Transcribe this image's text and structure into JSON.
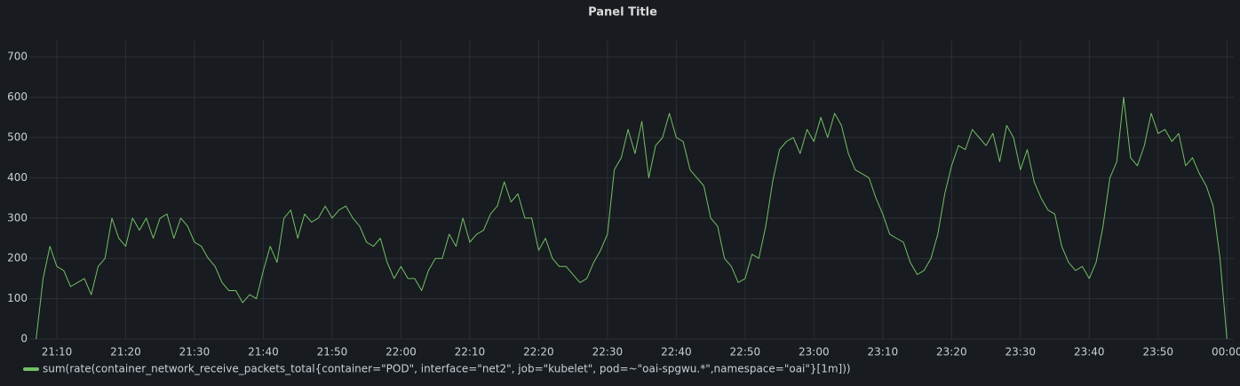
{
  "chart_data": {
    "type": "line",
    "title": "Panel Title",
    "x": [
      "21:07",
      "21:08",
      "21:09",
      "21:10",
      "21:11",
      "21:12",
      "21:13",
      "21:14",
      "21:15",
      "21:16",
      "21:17",
      "21:18",
      "21:19",
      "21:20",
      "21:21",
      "21:22",
      "21:23",
      "21:24",
      "21:25",
      "21:26",
      "21:27",
      "21:28",
      "21:29",
      "21:30",
      "21:31",
      "21:32",
      "21:33",
      "21:34",
      "21:35",
      "21:36",
      "21:37",
      "21:38",
      "21:39",
      "21:40",
      "21:41",
      "21:42",
      "21:43",
      "21:44",
      "21:45",
      "21:46",
      "21:47",
      "21:48",
      "21:49",
      "21:50",
      "21:51",
      "21:52",
      "21:53",
      "21:54",
      "21:55",
      "21:56",
      "21:57",
      "21:58",
      "21:59",
      "22:00",
      "22:01",
      "22:02",
      "22:03",
      "22:04",
      "22:05",
      "22:06",
      "22:07",
      "22:08",
      "22:09",
      "22:10",
      "22:11",
      "22:12",
      "22:13",
      "22:14",
      "22:15",
      "22:16",
      "22:17",
      "22:18",
      "22:19",
      "22:20",
      "22:21",
      "22:22",
      "22:23",
      "22:24",
      "22:25",
      "22:26",
      "22:27",
      "22:28",
      "22:29",
      "22:30",
      "22:31",
      "22:32",
      "22:33",
      "22:34",
      "22:35",
      "22:36",
      "22:37",
      "22:38",
      "22:39",
      "22:40",
      "22:41",
      "22:42",
      "22:43",
      "22:44",
      "22:45",
      "22:46",
      "22:47",
      "22:48",
      "22:49",
      "22:50",
      "22:51",
      "22:52",
      "22:53",
      "22:54",
      "22:55",
      "22:56",
      "22:57",
      "22:58",
      "22:59",
      "23:00",
      "23:01",
      "23:02",
      "23:03",
      "23:04",
      "23:05",
      "23:06",
      "23:07",
      "23:08",
      "23:09",
      "23:10",
      "23:11",
      "23:12",
      "23:13",
      "23:14",
      "23:15",
      "23:16",
      "23:17",
      "23:18",
      "23:19",
      "23:20",
      "23:21",
      "23:22",
      "23:23",
      "23:24",
      "23:25",
      "23:26",
      "23:27",
      "23:28",
      "23:29",
      "23:30",
      "23:31",
      "23:32",
      "23:33",
      "23:34",
      "23:35",
      "23:36",
      "23:37",
      "23:38",
      "23:39",
      "23:40",
      "23:41",
      "23:42",
      "23:43",
      "23:44",
      "23:45",
      "23:46",
      "23:47",
      "23:48",
      "23:49",
      "23:50",
      "23:51",
      "23:52",
      "23:53",
      "23:54",
      "23:55",
      "23:56",
      "23:57",
      "23:58",
      "23:59",
      "00:00"
    ],
    "series": [
      {
        "name": "sum(rate(container_network_receive_packets_total{container=\"POD\", interface=\"net2\", job=\"kubelet\", pod=~\"oai-spgwu.*\",namespace=\"oai\"}[1m]))",
        "color": "#73bf69",
        "values": [
          0,
          150,
          230,
          180,
          170,
          130,
          140,
          150,
          110,
          180,
          200,
          300,
          250,
          230,
          300,
          270,
          300,
          250,
          300,
          310,
          250,
          300,
          280,
          240,
          230,
          200,
          180,
          140,
          120,
          120,
          90,
          110,
          100,
          170,
          230,
          190,
          300,
          320,
          250,
          310,
          290,
          300,
          330,
          300,
          320,
          330,
          300,
          280,
          240,
          230,
          250,
          190,
          150,
          180,
          150,
          150,
          120,
          170,
          200,
          200,
          260,
          230,
          300,
          240,
          260,
          270,
          310,
          330,
          390,
          340,
          360,
          300,
          300,
          220,
          250,
          200,
          180,
          180,
          160,
          140,
          150,
          190,
          220,
          260,
          420,
          450,
          520,
          460,
          540,
          400,
          480,
          500,
          560,
          500,
          490,
          420,
          400,
          380,
          300,
          280,
          200,
          180,
          140,
          150,
          210,
          200,
          280,
          390,
          470,
          490,
          500,
          460,
          520,
          490,
          550,
          500,
          560,
          530,
          460,
          420,
          410,
          400,
          350,
          310,
          260,
          250,
          240,
          190,
          160,
          170,
          200,
          260,
          360,
          430,
          480,
          470,
          520,
          500,
          480,
          510,
          440,
          530,
          500,
          420,
          470,
          390,
          350,
          320,
          310,
          230,
          190,
          170,
          180,
          150,
          190,
          280,
          400,
          440,
          600,
          450,
          430,
          480,
          560,
          510,
          520,
          490,
          510,
          430,
          450,
          410,
          380,
          330,
          200,
          0
        ]
      }
    ],
    "xlim": [
      "21:06",
      "00:01"
    ],
    "xticks": [
      "21:10",
      "21:20",
      "21:30",
      "21:40",
      "21:50",
      "22:00",
      "22:10",
      "22:20",
      "22:30",
      "22:40",
      "22:50",
      "23:00",
      "23:10",
      "23:20",
      "23:30",
      "23:40",
      "23:50",
      "00:00"
    ],
    "ylim": [
      0,
      740
    ],
    "yticks": [
      0,
      100,
      200,
      300,
      400,
      500,
      600,
      700
    ],
    "grid": true
  }
}
